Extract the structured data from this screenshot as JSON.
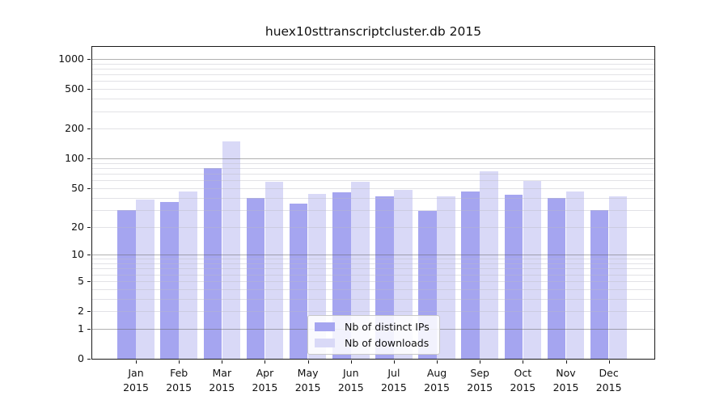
{
  "title": "huex10sttranscriptcluster.db 2015",
  "legend": {
    "items": [
      {
        "label": "Nb of distinct IPs",
        "color": "#a5a5f0"
      },
      {
        "label": "Nb of downloads",
        "color": "#d9d9f7"
      }
    ]
  },
  "chart_data": {
    "type": "bar",
    "title": "huex10sttranscriptcluster.db 2015",
    "categories": [
      "Jan",
      "Feb",
      "Mar",
      "Apr",
      "May",
      "Jun",
      "Jul",
      "Aug",
      "Sep",
      "Oct",
      "Nov",
      "Dec"
    ],
    "year_label": "2015",
    "series": [
      {
        "name": "Nb of distinct IPs",
        "color": "#a5a5f0",
        "values": [
          30,
          36,
          80,
          40,
          35,
          45,
          41,
          29,
          46,
          43,
          40,
          30
        ]
      },
      {
        "name": "Nb of downloads",
        "color": "#d9d9f7",
        "values": [
          38,
          46,
          150,
          58,
          44,
          58,
          48,
          41,
          74,
          59,
          46,
          41
        ]
      }
    ],
    "y_ticks": [
      0,
      1,
      2,
      5,
      10,
      20,
      50,
      100,
      200,
      500,
      1000
    ],
    "y_scale": "log1p",
    "ylim": [
      0,
      1340
    ],
    "major_gridlines": [
      1,
      10,
      100,
      1000
    ],
    "grid": true,
    "legend_position": "lower-center",
    "colors": {
      "major_grid": "#6e6e6e",
      "minor_grid": "#c6c6ce",
      "axis": "#1a1a1a"
    }
  }
}
